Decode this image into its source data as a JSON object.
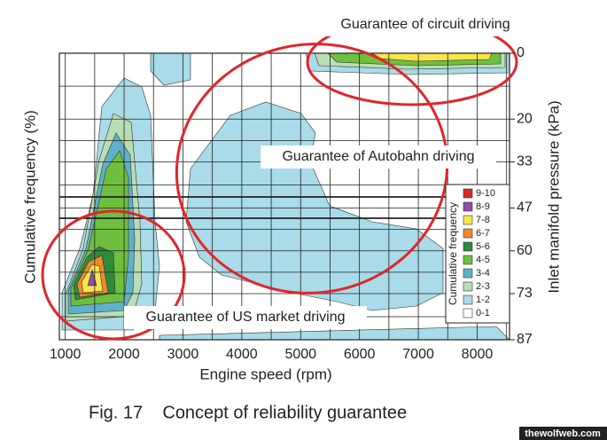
{
  "chart_data": {
    "type": "contour",
    "caption": "Fig. 17    Concept of reliability guarantee",
    "xlabel": "Engine speed (rpm)",
    "ylabel": "Cumulative frequency (%)",
    "y2label": "Inlet manifold pressure (kPa)",
    "xlim": [
      900,
      8550
    ],
    "xticks": [
      1000,
      2000,
      3000,
      4000,
      5000,
      6000,
      7000,
      8000
    ],
    "y2lim": [
      0,
      87
    ],
    "y2_inverted": true,
    "y2ticks": [
      0,
      20,
      33,
      47,
      60,
      73,
      87
    ],
    "grid": true,
    "legend": {
      "title": "Cumulative frequency",
      "corner": "lower right"
    },
    "levels": [
      {
        "name": "9-10",
        "color": "#e0262b"
      },
      {
        "name": "8-9",
        "color": "#8e4fa3"
      },
      {
        "name": "7-8",
        "color": "#f7e64a"
      },
      {
        "name": "6-7",
        "color": "#f08a2c"
      },
      {
        "name": "5-6",
        "color": "#2f8a3a"
      },
      {
        "name": "4-5",
        "color": "#6fbf3f"
      },
      {
        "name": "3-4",
        "color": "#5fb1c9"
      },
      {
        "name": "2-3",
        "color": "#b9deb3"
      },
      {
        "name": "1-2",
        "color": "#a9dbe8"
      },
      {
        "name": "0-1",
        "color": "#ffffff"
      }
    ],
    "annotations": [
      "Guarantee of circuit driving",
      "Guarantee of Autobahn driving",
      "Guarantee of US market driving"
    ],
    "watermark": "thewolfweb.com"
  }
}
